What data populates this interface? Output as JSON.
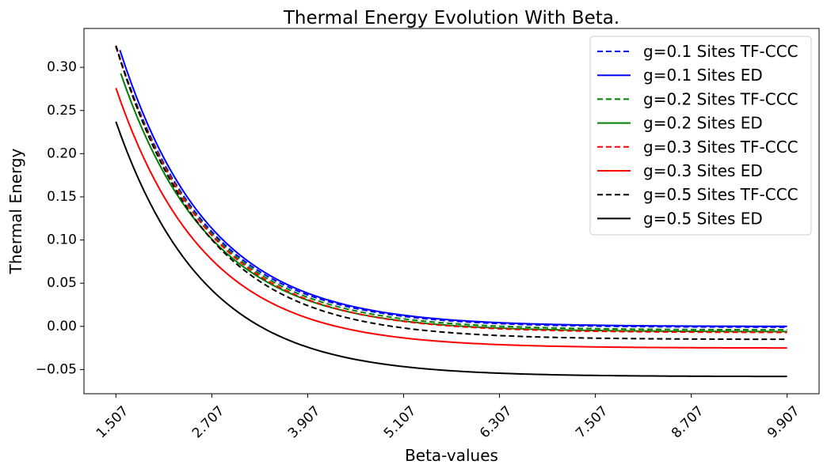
{
  "chart_data": {
    "type": "line",
    "title": "Thermal Energy Evolution With Beta.",
    "xlabel": "Beta-values",
    "ylabel": "Thermal Energy",
    "xlim": [
      1.107,
      10.307
    ],
    "ylim": [
      -0.078,
      0.345
    ],
    "xticks": [
      1.507,
      2.707,
      3.907,
      5.107,
      6.307,
      7.507,
      8.707,
      9.907
    ],
    "xtick_labels": [
      "1.507",
      "2.707",
      "3.907",
      "5.107",
      "6.307",
      "7.507",
      "8.707",
      "9.907"
    ],
    "yticks": [
      -0.05,
      0.0,
      0.05,
      0.1,
      0.15,
      0.2,
      0.25,
      0.3
    ],
    "ytick_labels": [
      "−0.05",
      "0.00",
      "0.05",
      "0.10",
      "0.15",
      "0.20",
      "0.25",
      "0.30"
    ],
    "grid": false,
    "legend_position": "top-right",
    "decay_rate": 0.9,
    "series": [
      {
        "name": "g=0.1 Sites TF-CCC",
        "color": "#0000ff",
        "dash": "dashed",
        "x_start": 1.507,
        "x_end": 9.907,
        "y_start": 0.325,
        "y_end": -0.001
      },
      {
        "name": "g=0.1 Sites ED",
        "color": "#0000ff",
        "dash": "solid",
        "x_start": 1.557,
        "x_end": 9.907,
        "y_start": 0.32,
        "y_end": 0.0
      },
      {
        "name": "g=0.2 Sites TF-CCC",
        "color": "#008000",
        "dash": "dashed",
        "x_start": 1.507,
        "x_end": 9.907,
        "y_start": 0.324,
        "y_end": -0.004
      },
      {
        "name": "g=0.2 Sites ED",
        "color": "#008000",
        "dash": "solid",
        "x_start": 1.567,
        "x_end": 9.907,
        "y_start": 0.293,
        "y_end": -0.006
      },
      {
        "name": "g=0.3 Sites TF-CCC",
        "color": "#ff0000",
        "dash": "dashed",
        "x_start": 1.507,
        "x_end": 9.907,
        "y_start": 0.324,
        "y_end": -0.007
      },
      {
        "name": "g=0.3 Sites ED",
        "color": "#ff0000",
        "dash": "solid",
        "x_start": 1.507,
        "x_end": 9.907,
        "y_start": 0.276,
        "y_end": -0.025
      },
      {
        "name": "g=0.5 Sites TF-CCC",
        "color": "#000000",
        "dash": "dashed",
        "x_start": 1.507,
        "x_end": 9.907,
        "y_start": 0.325,
        "y_end": -0.015
      },
      {
        "name": "g=0.5 Sites ED",
        "color": "#000000",
        "dash": "solid",
        "x_start": 1.507,
        "x_end": 9.907,
        "y_start": 0.237,
        "y_end": -0.058
      }
    ]
  }
}
